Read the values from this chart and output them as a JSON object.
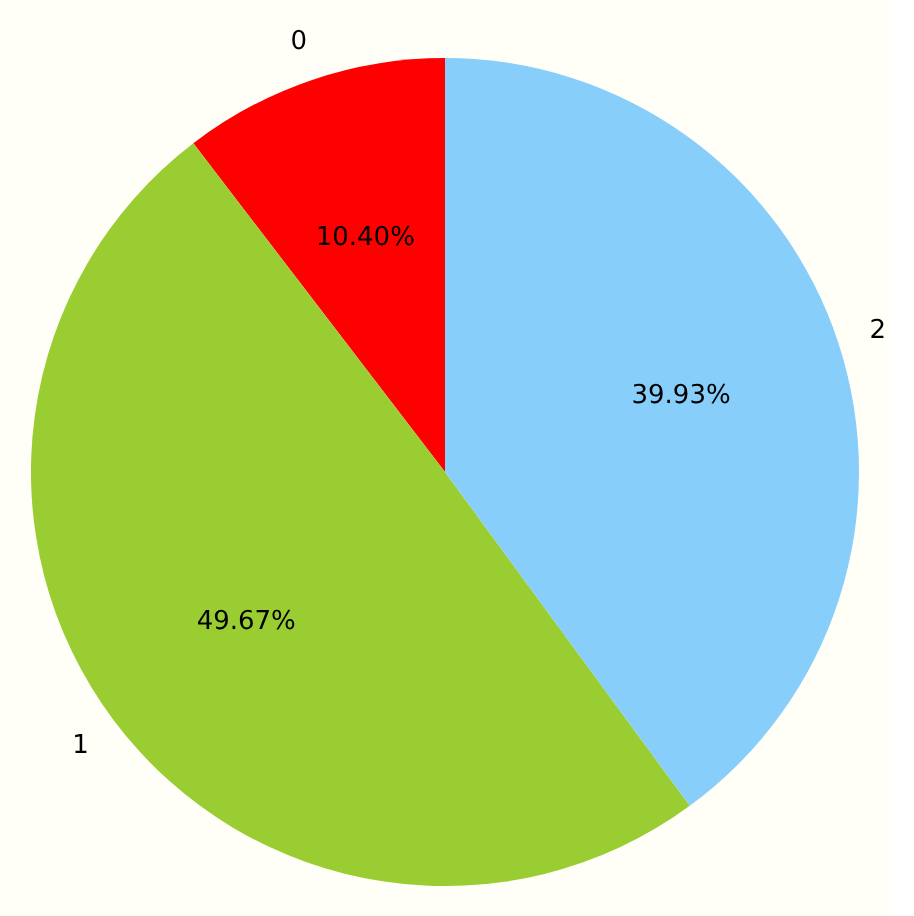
{
  "chart_data": {
    "type": "pie",
    "categories": [
      "0",
      "1",
      "2"
    ],
    "values": [
      10.4,
      49.67,
      39.93
    ],
    "colors": [
      "#ff0000",
      "#9acd32",
      "#87cefa"
    ],
    "value_labels": [
      "10.40%",
      "49.67%",
      "39.93%"
    ]
  }
}
